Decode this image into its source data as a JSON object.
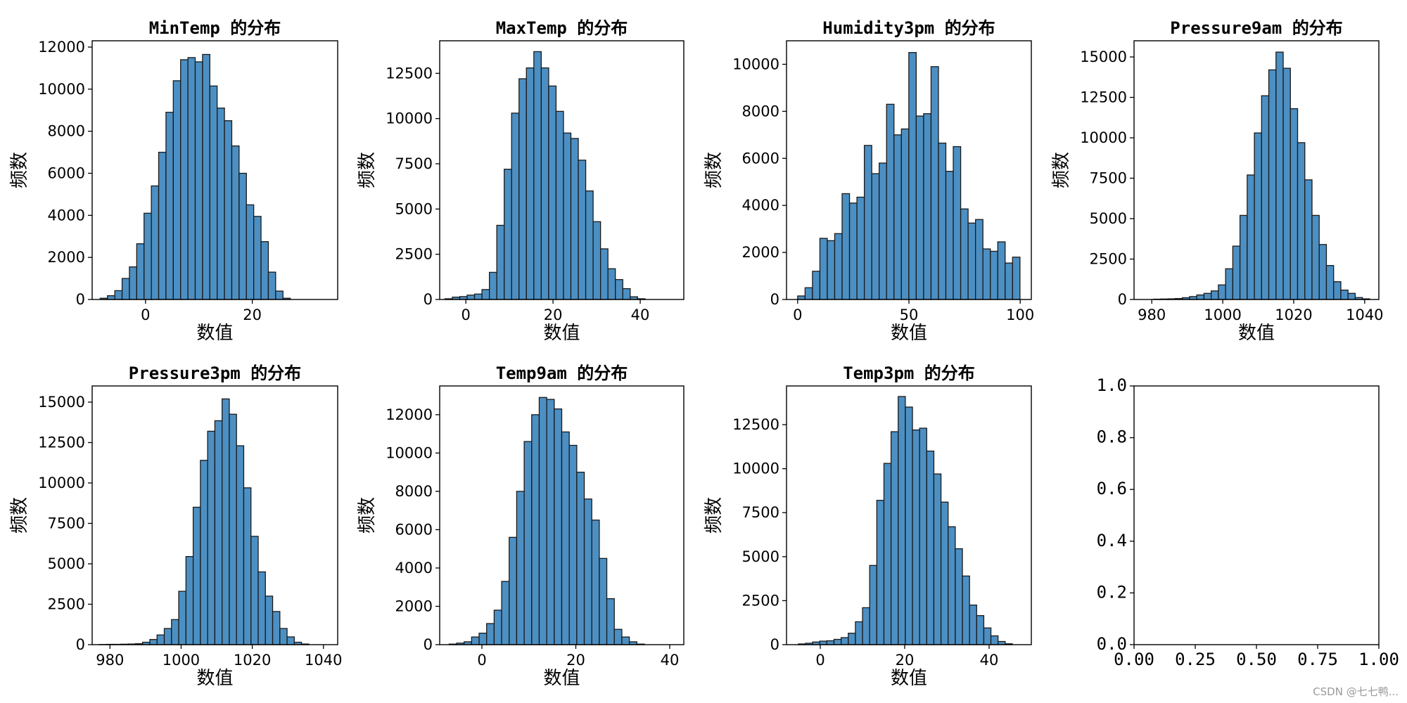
{
  "watermark": "CSDN @七七鸭...",
  "chart_data": [
    {
      "type": "bar",
      "title": "MinTemp 的分布",
      "xlabel": "数值",
      "ylabel": "频数",
      "xlim": [
        -10,
        36
      ],
      "ylim": [
        0,
        12300
      ],
      "xticks": [
        0,
        20
      ],
      "yticks": [
        0,
        2000,
        4000,
        6000,
        8000,
        10000,
        12000
      ],
      "bin_start": -8.5,
      "bin_width": 1.37,
      "values": [
        60,
        180,
        420,
        1000,
        1550,
        2650,
        4100,
        5400,
        7000,
        8900,
        10400,
        11400,
        11500,
        11300,
        11650,
        10150,
        9100,
        8500,
        7300,
        6000,
        4500,
        3950,
        2750,
        1300,
        400,
        60
      ]
    },
    {
      "type": "bar",
      "title": "MaxTemp 的分布",
      "xlabel": "数值",
      "ylabel": "频数",
      "xlim": [
        -6,
        50
      ],
      "ylim": [
        0,
        14300
      ],
      "xticks": [
        0,
        20,
        40
      ],
      "yticks": [
        0,
        2500,
        5000,
        7500,
        10000,
        12500
      ],
      "bin_start": -4.8,
      "bin_width": 1.7,
      "values": [
        40,
        130,
        160,
        240,
        300,
        550,
        1500,
        4100,
        7200,
        10300,
        12200,
        12800,
        13700,
        12800,
        11800,
        10400,
        9200,
        8900,
        7700,
        6000,
        4300,
        2800,
        1700,
        1100,
        600,
        150,
        40
      ]
    },
    {
      "type": "bar",
      "title": "Humidity3pm 的分布",
      "xlabel": "数值",
      "ylabel": "频数",
      "xlim": [
        -5,
        105
      ],
      "ylim": [
        0,
        11000
      ],
      "xticks": [
        0,
        50,
        100
      ],
      "yticks": [
        0,
        2000,
        4000,
        6000,
        8000,
        10000
      ],
      "bin_start": 0,
      "bin_width": 3.33,
      "values": [
        150,
        500,
        1200,
        2600,
        2500,
        2800,
        4500,
        4100,
        4350,
        6550,
        5350,
        5800,
        8300,
        7000,
        7250,
        10500,
        7800,
        7900,
        9900,
        6650,
        5450,
        6500,
        3850,
        3250,
        3400,
        2150,
        2050,
        2450,
        1550,
        1800
      ]
    },
    {
      "type": "bar",
      "title": "Pressure9am 的分布",
      "xlabel": "数值",
      "ylabel": "频数",
      "xlim": [
        975,
        1044
      ],
      "ylim": [
        0,
        16000
      ],
      "xticks": [
        980,
        1000,
        1020,
        1040
      ],
      "yticks": [
        0,
        2500,
        5000,
        7500,
        10000,
        12500,
        15000
      ],
      "bin_start": 980.5,
      "bin_width": 2.03,
      "values": [
        20,
        30,
        40,
        60,
        110,
        180,
        280,
        380,
        530,
        900,
        1900,
        3300,
        5200,
        7700,
        10300,
        12600,
        14200,
        15300,
        14300,
        11800,
        9700,
        7400,
        5200,
        3400,
        2100,
        1100,
        580,
        380,
        120,
        40
      ]
    },
    {
      "type": "bar",
      "title": "Pressure3pm 的分布",
      "xlabel": "数值",
      "ylabel": "频数",
      "xlim": [
        975,
        1044
      ],
      "ylim": [
        0,
        16000
      ],
      "xticks": [
        980,
        1000,
        1020,
        1040
      ],
      "yticks": [
        0,
        2500,
        5000,
        7500,
        10000,
        12500,
        15000
      ],
      "bin_start": 977,
      "bin_width": 2.03,
      "values": [
        10,
        20,
        20,
        30,
        40,
        60,
        150,
        320,
        600,
        1000,
        1550,
        3300,
        5450,
        8500,
        11400,
        13200,
        13850,
        15200,
        14250,
        12300,
        9700,
        6700,
        4500,
        3000,
        2050,
        1000,
        480,
        150,
        40
      ]
    },
    {
      "type": "bar",
      "title": "Temp9am 的分布",
      "xlabel": "数值",
      "ylabel": "频数",
      "xlim": [
        -9,
        43
      ],
      "ylim": [
        0,
        13500
      ],
      "xticks": [
        0,
        20,
        40
      ],
      "yticks": [
        0,
        2000,
        4000,
        6000,
        8000,
        10000,
        12000
      ],
      "bin_start": -7,
      "bin_width": 1.6,
      "values": [
        30,
        80,
        150,
        400,
        600,
        1100,
        1800,
        3300,
        5600,
        8000,
        10600,
        12000,
        12900,
        12800,
        12300,
        11100,
        10400,
        9000,
        7600,
        6500,
        4500,
        2400,
        800,
        400,
        150,
        30
      ]
    },
    {
      "type": "bar",
      "title": "Temp3pm 的分布",
      "xlabel": "数值",
      "ylabel": "频数",
      "xlim": [
        -8,
        50
      ],
      "ylim": [
        0,
        14700
      ],
      "xticks": [
        0,
        20,
        40
      ],
      "yticks": [
        0,
        2500,
        5000,
        7500,
        10000,
        12500
      ],
      "bin_start": -5.2,
      "bin_width": 1.69,
      "values": [
        40,
        80,
        150,
        200,
        220,
        300,
        400,
        650,
        1300,
        2100,
        4500,
        8200,
        10300,
        12100,
        14100,
        13500,
        12200,
        12300,
        11000,
        9700,
        8100,
        6700,
        5450,
        3900,
        2250,
        1650,
        950,
        500,
        180,
        50
      ]
    },
    {
      "type": "empty",
      "xlim": [
        0,
        1
      ],
      "ylim": [
        0,
        1
      ],
      "xticks": [
        0,
        0.25,
        0.5,
        0.75,
        1
      ],
      "yticks": [
        0,
        0.2,
        0.4,
        0.6,
        0.8,
        1
      ],
      "xtick_labels": [
        "0.00",
        "0.25",
        "0.50",
        "0.75",
        "1.00"
      ],
      "ytick_labels": [
        "0.0",
        "0.2",
        "0.4",
        "0.6",
        "0.8",
        "1.0"
      ]
    }
  ]
}
